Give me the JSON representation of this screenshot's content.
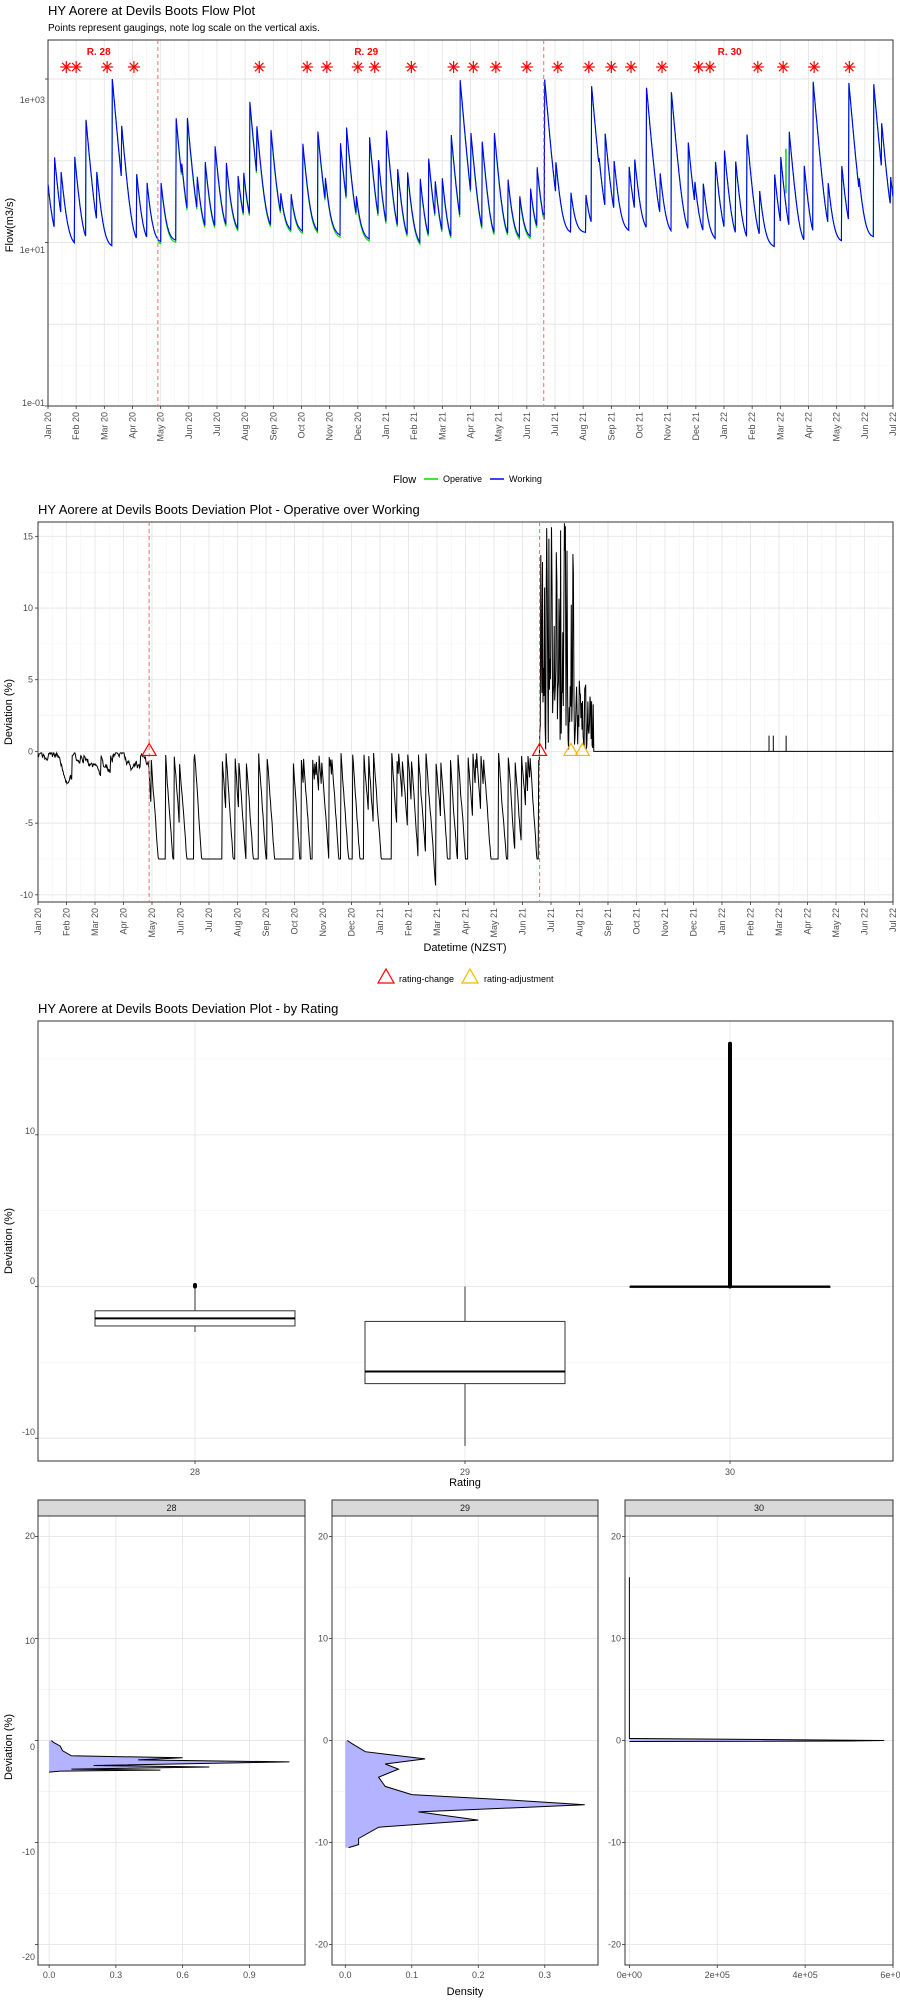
{
  "flow_plot": {
    "title": "HY Aorere at Devils Boots Flow Plot",
    "subtitle": "Points represent gaugings, note log scale on the vertical axis.",
    "ylabel": "Flow(m3/s)",
    "y_ticks": [
      "1e-01",
      "1e+01",
      "1e+03"
    ],
    "legend_title": "Flow",
    "legend_items": [
      "Operative",
      "Working"
    ]
  },
  "deviation_plot": {
    "title": "HY Aorere at Devils Boots Deviation Plot - Operative over Working",
    "xlabel": "Datetime (NZST)",
    "ylabel": "Deviation (%)",
    "y_ticks": [
      "-10",
      "-5",
      "0",
      "5",
      "10",
      "15"
    ],
    "legend_items": [
      "rating-change",
      "rating-adjustment"
    ]
  },
  "box_plot": {
    "title": "HY Aorere at Devils Boots Deviation Plot - by Rating",
    "xlabel": "Rating",
    "ylabel": "Deviation (%)",
    "y_ticks": [
      "-10",
      "0",
      "10"
    ]
  },
  "density_plot": {
    "xlabel": "Density",
    "ylabel": "Deviation (%)",
    "y_ticks": [
      "-20",
      "-10",
      "0",
      "10",
      "20"
    ]
  },
  "time_axis_labels": [
    "Jan 20",
    "Feb 20",
    "Mar 20",
    "Apr 20",
    "May 20",
    "Jun 20",
    "Jul 20",
    "Aug 20",
    "Sep 20",
    "Oct 20",
    "Nov 20",
    "Dec 20",
    "Jan 21",
    "Feb 21",
    "Mar 21",
    "Apr 21",
    "May 21",
    "Jun 21",
    "Jul 21",
    "Aug 21",
    "Sep 21",
    "Oct 21",
    "Nov 21",
    "Dec 21",
    "Jan 22",
    "Feb 22",
    "Mar 22",
    "Apr 22",
    "May 22",
    "Jun 22",
    "Jul 22"
  ],
  "colors": {
    "operative": "#00dd00",
    "working": "#0000ff",
    "gauging": "#ff0000",
    "rating_line": "#ff6666",
    "rating_change": "#ff0000",
    "rating_adjustment": "#f5b800",
    "density_fill": "#b3b3ff",
    "facet_strip": "#d9d9d9"
  },
  "chart_data": [
    {
      "type": "line",
      "panel": "flow",
      "title": "HY Aorere at Devils Boots Flow Plot",
      "subtitle": "Points represent gaugings, note log scale on the vertical axis.",
      "ylabel": "Flow(m3/s)",
      "y_scale": "log10",
      "ylim": [
        0.1,
        3000
      ],
      "xlim": [
        "2020-01-01",
        "2022-07-01"
      ],
      "series": [
        {
          "name": "Operative",
          "description_level": "baseflow ~7-10 m3/s with peaks to ~1000 m3/s"
        },
        {
          "name": "Working"
        }
      ],
      "gaugings_month_index": [
        0.65,
        1.0,
        2.1,
        3.05,
        7.5,
        9.2,
        9.9,
        11.0,
        11.6,
        12.9,
        14.4,
        15.1,
        15.9,
        17.0,
        18.1,
        19.2,
        20.0,
        20.7,
        21.8,
        23.1,
        23.5,
        25.2,
        26.1,
        27.2,
        28.45
      ],
      "rating_periods": [
        {
          "label": "R. 28",
          "start_month_index": 0.0
        },
        {
          "label": "R. 29",
          "start_month_index": 3.9
        },
        {
          "label": "R. 30",
          "start_month_index": 17.6
        }
      ],
      "rating_change_month_index": [
        3.9,
        17.6
      ]
    },
    {
      "type": "line",
      "panel": "deviation",
      "title": "HY Aorere at Devils Boots Deviation Plot - Operative over Working",
      "xlabel": "Datetime (NZST)",
      "ylabel": "Deviation (%)",
      "ylim": [
        -10.5,
        16
      ],
      "rating_change_month_index": [
        3.9,
        17.6
      ],
      "rating_adjustment_month_index": [
        18.7,
        19.1
      ],
      "segments": [
        {
          "from": 0.0,
          "to": 3.9,
          "range": [
            -3.0,
            0.0
          ]
        },
        {
          "from": 3.9,
          "to": 17.6,
          "range": [
            -10.5,
            0.0
          ]
        },
        {
          "from": 17.6,
          "to": 19.5,
          "range": [
            0.0,
            16.0
          ]
        },
        {
          "from": 19.5,
          "to": 30.0,
          "value": 0.0,
          "spikes": [
            {
              "x": 25.65,
              "y": 1.1
            },
            {
              "x": 25.8,
              "y": 1.1
            },
            {
              "x": 26.25,
              "y": 1.1
            }
          ]
        }
      ]
    },
    {
      "type": "box",
      "panel": "by-rating",
      "title": "HY Aorere at Devils Boots Deviation Plot - by Rating",
      "xlabel": "Rating",
      "ylabel": "Deviation (%)",
      "categories": [
        "28",
        "29",
        "30"
      ],
      "boxes": [
        {
          "min": -3.0,
          "q1": -2.6,
          "median": -2.1,
          "q3": -1.6,
          "max": -0.1,
          "outliers": [
            0.0,
            0.1
          ]
        },
        {
          "min": -10.5,
          "q1": -6.4,
          "median": -5.6,
          "q3": -2.3,
          "max": 0.0,
          "outliers": []
        },
        {
          "min": 0.0,
          "q1": 0.0,
          "median": 0.0,
          "q3": 0.0,
          "max": 0.0,
          "outliers_range": [
            0.0,
            16.0
          ]
        }
      ]
    },
    {
      "type": "area",
      "panel": "density",
      "xlabel": "Density",
      "ylabel": "Deviation (%)",
      "facets": [
        {
          "name": "28",
          "xlim": [
            -0.05,
            1.15
          ],
          "x_ticks": [
            "0.0",
            "0.3",
            "0.6",
            "0.9"
          ],
          "curve": [
            [
              0.0,
              -3.1
            ],
            [
              0.05,
              -3.0
            ],
            [
              0.5,
              -2.9
            ],
            [
              0.1,
              -2.8
            ],
            [
              0.72,
              -2.6
            ],
            [
              0.2,
              -2.45
            ],
            [
              1.08,
              -2.1
            ],
            [
              0.4,
              -1.9
            ],
            [
              0.6,
              -1.7
            ],
            [
              0.1,
              -1.5
            ],
            [
              0.06,
              -1.0
            ],
            [
              0.05,
              -0.55
            ],
            [
              0.02,
              -0.2
            ],
            [
              0.01,
              0.0
            ]
          ]
        },
        {
          "name": "29",
          "xlim": [
            -0.02,
            0.38
          ],
          "x_ticks": [
            "0.0",
            "0.1",
            "0.2",
            "0.3"
          ],
          "curve": [
            [
              0.005,
              -10.5
            ],
            [
              0.02,
              -10.2
            ],
            [
              0.02,
              -9.6
            ],
            [
              0.05,
              -8.5
            ],
            [
              0.2,
              -7.8
            ],
            [
              0.11,
              -7.0
            ],
            [
              0.36,
              -6.3
            ],
            [
              0.24,
              -5.8
            ],
            [
              0.1,
              -5.3
            ],
            [
              0.06,
              -4.5
            ],
            [
              0.05,
              -3.6
            ],
            [
              0.08,
              -2.8
            ],
            [
              0.06,
              -2.3
            ],
            [
              0.12,
              -1.8
            ],
            [
              0.03,
              -1.1
            ],
            [
              0.01,
              -0.3
            ],
            [
              0.003,
              0.0
            ]
          ]
        },
        {
          "name": "30",
          "xlim": [
            -10000,
            600000
          ],
          "x_ticks": [
            "0e+00",
            "2e+05",
            "4e+05",
            "6e+05"
          ],
          "curve": [
            [
              0,
              16
            ],
            [
              0,
              0.2
            ],
            [
              580000,
              0.0
            ],
            [
              500000,
              -0.05
            ],
            [
              0,
              -0.1
            ]
          ]
        }
      ],
      "ylim": [
        -22,
        22
      ]
    }
  ]
}
